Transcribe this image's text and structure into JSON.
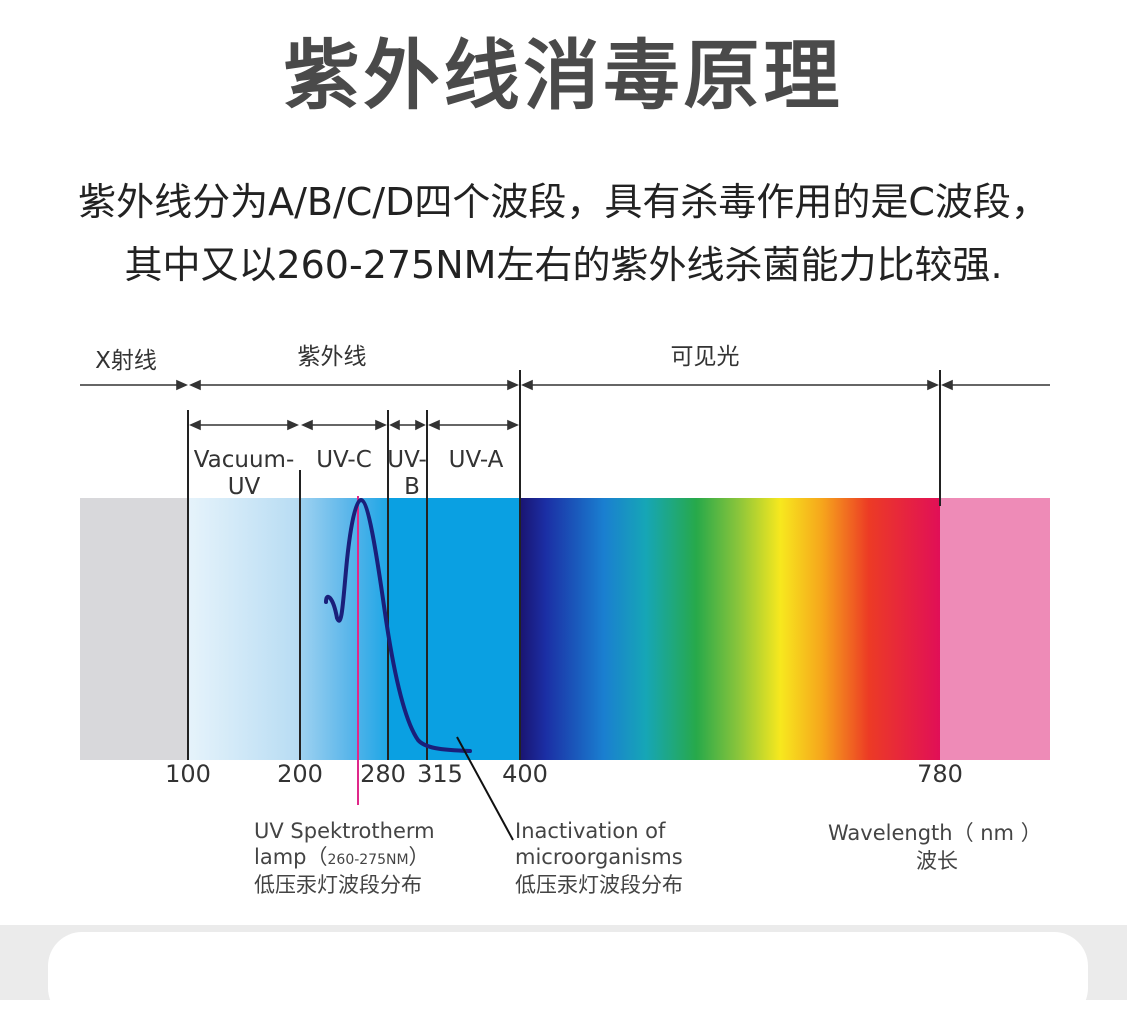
{
  "title": "紫外线消毒原理",
  "intro": {
    "line1": "紫外线分为A/B/C/D四个波段，具有杀毒作用的是C波段，",
    "line2": "其中又以260-275NM左右的紫外线杀菌能力比较强."
  },
  "diagram": {
    "regions": {
      "xray": "X射线",
      "uv": "紫外线",
      "visible": "可见光"
    },
    "bands": {
      "vacuum_uv_line1": "Vacuum-",
      "vacuum_uv_line2": "UV",
      "uvc": "UV-C",
      "uvb_line1": "UV-",
      "uvb_line2": "B",
      "uva": "UV-A"
    },
    "ticks": [
      "100",
      "200",
      "280",
      "315",
      "400",
      "780"
    ],
    "lamp_label": {
      "line1": "UV Spektrotherm",
      "line2_prefix": "lamp（",
      "line2_range": "260-275NM",
      "line2_suffix": "）",
      "line3": "低压汞灯波段分布"
    },
    "inactivation_label": {
      "line1": "Inactivation  of",
      "line2": "microorganisms",
      "line3": "低压汞灯波段分布"
    },
    "wavelength_label": {
      "line1": "Wavelength（ nm ）",
      "line2": "波长"
    },
    "colors": {
      "xray_block": "#d8d8db",
      "uv_block": "#0aa0e2",
      "ir_block": "#ee8bb7",
      "lamp_line": "#e0288a",
      "curve": "#1a1f7a"
    }
  }
}
